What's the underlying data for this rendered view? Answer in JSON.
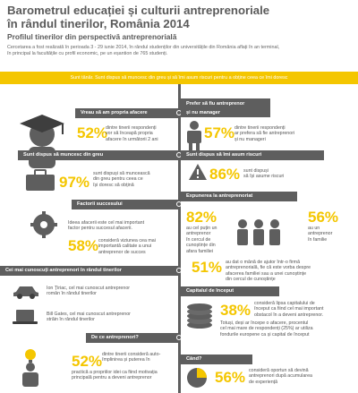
{
  "header": {
    "title_line1": "Barometrul educației și culturii antreprenoriale",
    "title_line2": "în rândul tinerilor, România 2014",
    "subtitle": "Profilul tinerilor din perspectivă antreprenorială",
    "intro_line1": "Cercetarea a fost realizată în perioada 3 - 29 iunie 2014, în rândul studenților din universitățile din România aflați în an terminal,",
    "intro_line2": "în principal la facultățile cu profil economic, pe un eșantion de 765 studenți."
  },
  "banner": "Sunt tânăr. Sunt dispus să muncesc din greu și să îmi asum riscuri pentru a obține ceea ce îmi doresc",
  "colors": {
    "accent": "#f4c600",
    "dark": "#5e5e5e"
  },
  "sections": {
    "own_business": {
      "header": "Vreau să am propria afacere",
      "pct": "52%",
      "l1": "dintre tinerii respondenți",
      "l2": "vor să înceapă propria",
      "l3": "afacere în următorii 2 ani"
    },
    "employee": {
      "header_l1": "Prefer să fiu antreprenor",
      "header_l2": "și nu manager",
      "pct": "57%",
      "l1": "dintre tinerii respondenți",
      "l2": "ar prefera să fie antreprenori",
      "l3": "și nu manageri"
    },
    "work_hard": {
      "header": "Sunt dispus să muncesc din greu",
      "pct": "97%",
      "l1": "sunt dispuși să muncească",
      "l2": "din greu pentru ceea ce",
      "l3": "își doresc să obțină"
    },
    "risk": {
      "header": "Sunt dispus să îmi asum riscuri",
      "pct": "86%",
      "l1": "sunt dispuși",
      "l2": "să își asume riscuri"
    },
    "exposure": {
      "header": "Expunerea la antreprenoriat",
      "pct_a": "82%",
      "a_l1": "au cel puțin un",
      "a_l2": "antreprenor",
      "a_l3": "în cercul de",
      "a_l4": "cunoștințe din",
      "a_l5": "afara familiei",
      "pct_b": "56%",
      "b_l1": "au un",
      "b_l2": "antreprenor",
      "b_l3": "în familie",
      "pct_c": "51%",
      "c_l1": "au dat o mână de ajutor într-o firmă",
      "c_l2": "antreprenorială, fie că este vorba despre",
      "c_l3": "afacerea familiei sau a unei cunoștințe",
      "c_l4": "din cercul de cunoștințe"
    },
    "success": {
      "header": "Factorii succesului",
      "t1": "Ideea afacerii este cel mai important",
      "t2": "factor pentru succesul afacerii.",
      "pct": "58%",
      "l1": "consideră viziunea cea mai",
      "l2": "importantă calitate a unui",
      "l3": "antreprenor de succes"
    },
    "known": {
      "header": "Cei mai cunoscuți antreprenori în rândul tinerilor",
      "a1": "Ion Țiriac, cel mai cunoscut antreprenor",
      "a2": "român în rândul tinerilor",
      "b1": "Bill Gates, cel mai cunoscut antreprenor",
      "b2": "străin în rândul tinerilor"
    },
    "capital": {
      "header": "Capitalul de început",
      "pct": "38%",
      "l1": "consideră lipsa capitalului de",
      "l2": "început ca fiind cel mai important",
      "l3": "obstacol în a deveni antreprenor.",
      "l4": "Totuși, deși ar începe o afacere, procentul",
      "l5": "cel mai mare de respondenți (25%) ar utiliza",
      "l6": "fondurile europene ca și capital de început"
    },
    "why": {
      "header": "De ce antreprenori?",
      "pct": "52%",
      "l1": "dintre tinerii consideră auto-",
      "l2": "împlinirea și puterea în",
      "l3": "practică a propriilor idei ca fiind motivația",
      "l4": "principală pentru a deveni antreprenor"
    },
    "when": {
      "header": "Când?",
      "pct": "56%",
      "l1": "consideră oportun să devină",
      "l2": "antreprenori după acumularea",
      "l3": "de experiență"
    }
  },
  "icons": [
    "graduate-icon",
    "manager-icon",
    "briefcase-icon",
    "hand-money-icon",
    "people-icon",
    "gear-head-icon",
    "car-icon",
    "laptop-icon",
    "coins-icon",
    "person-bulb-icon",
    "pie-icon"
  ]
}
